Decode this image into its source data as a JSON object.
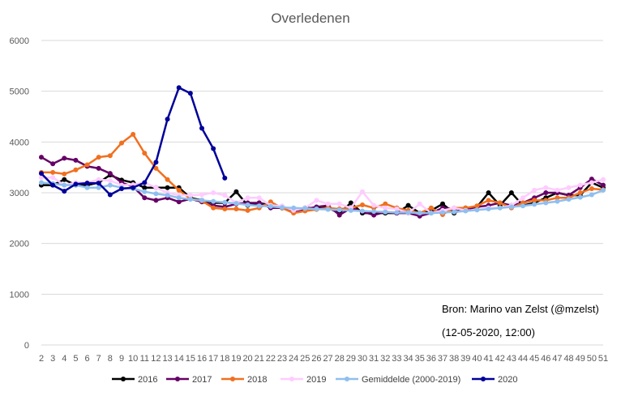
{
  "chart_data": {
    "type": "line",
    "title": "Overledenen",
    "xlabel": "",
    "ylabel": "",
    "x": [
      2,
      3,
      4,
      5,
      6,
      7,
      8,
      9,
      10,
      11,
      12,
      13,
      14,
      15,
      16,
      17,
      18,
      19,
      20,
      21,
      22,
      23,
      24,
      25,
      26,
      27,
      28,
      29,
      30,
      31,
      32,
      33,
      34,
      35,
      36,
      37,
      38,
      39,
      40,
      41,
      42,
      43,
      44,
      45,
      46,
      47,
      48,
      49,
      50,
      51
    ],
    "ylim": [
      0,
      6000
    ],
    "yticks": [
      0,
      1000,
      2000,
      3000,
      4000,
      5000,
      6000
    ],
    "grid": "horizontal",
    "legend_position": "bottom",
    "series": [
      {
        "name": "2016",
        "color": "#000000",
        "values": [
          3150,
          3150,
          3260,
          3150,
          3150,
          3200,
          3350,
          3250,
          3200,
          3100,
          3100,
          3100,
          3100,
          2900,
          2850,
          2800,
          2800,
          3020,
          2750,
          2800,
          2750,
          2700,
          2650,
          2700,
          2700,
          2700,
          2600,
          2800,
          2600,
          2600,
          2600,
          2600,
          2750,
          2600,
          2650,
          2780,
          2600,
          2700,
          2720,
          3000,
          2750,
          3000,
          2750,
          2800,
          2900,
          3000,
          2950,
          2950,
          3200,
          3100
        ]
      },
      {
        "name": "2017",
        "color": "#660066",
        "values": [
          3700,
          3570,
          3680,
          3640,
          3520,
          3480,
          3380,
          3200,
          3120,
          2900,
          2850,
          2900,
          2820,
          2880,
          2820,
          2750,
          2720,
          2780,
          2800,
          2800,
          2700,
          2700,
          2620,
          2680,
          2720,
          2750,
          2560,
          2700,
          2630,
          2560,
          2620,
          2600,
          2600,
          2540,
          2600,
          2700,
          2680,
          2670,
          2720,
          2750,
          2800,
          2750,
          2800,
          2900,
          3000,
          3000,
          2950,
          3100,
          3270,
          3150
        ]
      },
      {
        "name": "2018",
        "color": "#f07020",
        "values": [
          3400,
          3400,
          3370,
          3450,
          3550,
          3700,
          3730,
          3980,
          4150,
          3780,
          3480,
          3260,
          3050,
          2880,
          2840,
          2700,
          2680,
          2680,
          2650,
          2700,
          2820,
          2700,
          2600,
          2640,
          2670,
          2700,
          2680,
          2700,
          2760,
          2700,
          2780,
          2700,
          2650,
          2600,
          2700,
          2570,
          2700,
          2700,
          2740,
          2850,
          2800,
          2700,
          2800,
          2850,
          2850,
          2900,
          2900,
          3000,
          3080,
          3060
        ]
      },
      {
        "name": "2019",
        "color": "#ffccff",
        "values": [
          3300,
          3300,
          3150,
          3200,
          3200,
          3260,
          3240,
          3150,
          3160,
          3200,
          3100,
          3000,
          2950,
          2950,
          2960,
          3000,
          2950,
          2800,
          2900,
          2900,
          2750,
          2740,
          2650,
          2700,
          2850,
          2780,
          2780,
          2700,
          3020,
          2750,
          2700,
          2680,
          2600,
          2780,
          2600,
          2650,
          2700,
          2650,
          2660,
          2700,
          2700,
          2750,
          2900,
          3050,
          3100,
          3050,
          3100,
          3150,
          3200,
          3260
        ]
      },
      {
        "name": "Gemiddelde (2000-2019)",
        "color": "#8fbfef",
        "values": [
          3200,
          3180,
          3150,
          3150,
          3100,
          3100,
          3150,
          3100,
          3080,
          3020,
          2980,
          2950,
          2900,
          2870,
          2850,
          2830,
          2810,
          2790,
          2760,
          2740,
          2730,
          2710,
          2700,
          2690,
          2680,
          2670,
          2660,
          2650,
          2640,
          2630,
          2620,
          2610,
          2610,
          2600,
          2600,
          2610,
          2620,
          2640,
          2660,
          2680,
          2700,
          2720,
          2740,
          2770,
          2800,
          2830,
          2870,
          2910,
          2960,
          3050
        ]
      },
      {
        "name": "2020",
        "color": "#000099",
        "values": [
          3380,
          3150,
          3030,
          3170,
          3190,
          3190,
          2960,
          3080,
          3100,
          3200,
          3600,
          4450,
          5070,
          4960,
          4270,
          3870,
          3290,
          null,
          null,
          null,
          null,
          null,
          null,
          null,
          null,
          null,
          null,
          null,
          null,
          null,
          null,
          null,
          null,
          null,
          null,
          null,
          null,
          null,
          null,
          null,
          null,
          null,
          null,
          null,
          null,
          null,
          null,
          null,
          null,
          null
        ]
      }
    ]
  },
  "annotations": {
    "source": "Bron: Marino van Zelst (@mzelst)",
    "timestamp": "(12-05-2020, 12:00)"
  }
}
